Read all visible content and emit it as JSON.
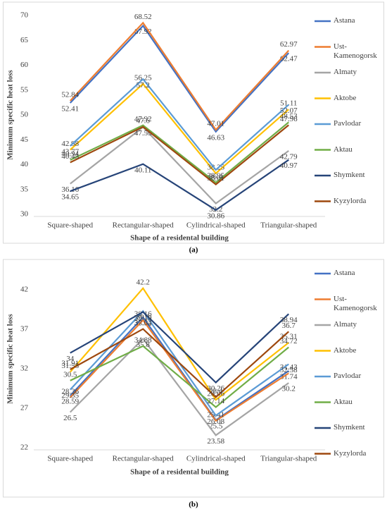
{
  "chart_data": [
    {
      "type": "line",
      "caption": "(a)",
      "y_label": "Minimum specific heat loss",
      "x_label": "Shape of a residental building",
      "categories": [
        "Square-shaped",
        "Rectangular-shaped",
        "Cylindrical-shaped",
        "Triangular-shaped"
      ],
      "ylim": [
        30,
        70
      ],
      "yticks": [
        30,
        35,
        40,
        45,
        50,
        55,
        60,
        65,
        70
      ],
      "grid": false,
      "legend": "right",
      "series": [
        {
          "name": "Astana",
          "color": "#4472c4",
          "values": [
            52.41,
            67.92,
            46.63,
            62.47
          ]
        },
        {
          "name": "Ust-Kamenogorsk",
          "color": "#ed7d31",
          "values": [
            52.84,
            68.52,
            47.01,
            62.97
          ]
        },
        {
          "name": "Almaty",
          "color": "#a5a5a5",
          "values": [
            36.16,
            47.55,
            32.2,
            42.79
          ]
        },
        {
          "name": "Aktobe",
          "color": "#ffc000",
          "values": [
            42.98,
            56.25,
            38.25,
            51.11
          ]
        },
        {
          "name": "Pavlodar",
          "color": "#5b9bd5",
          "values": [
            43.77,
            57.2,
            38.95,
            52.07
          ]
        },
        {
          "name": "Aktau",
          "color": "#70ad47",
          "values": [
            40.94,
            47.92,
            36.4,
            48.53
          ]
        },
        {
          "name": "Shymkent",
          "color": "#264478",
          "values": [
            34.65,
            40.11,
            30.86,
            40.97
          ]
        },
        {
          "name": "Kyzylorda",
          "color": "#9e480e",
          "values": [
            40.45,
            47.6,
            36.01,
            47.96
          ]
        }
      ]
    },
    {
      "type": "line",
      "caption": "(b)",
      "y_label": "Minimum specific heat loss",
      "x_label": "Shape of a residental building",
      "categories": [
        "Square-shaped",
        "Rectangular-shaped",
        "Cylindrical-shaped",
        "Triangular-shaped"
      ],
      "ylim": [
        22,
        44.5
      ],
      "yticks": [
        22,
        27,
        32,
        37,
        42
      ],
      "grid": false,
      "legend": "right",
      "series": [
        {
          "name": "Astana",
          "color": "#4472c4",
          "values": [
            28.59,
            38.52,
            25.5,
            31.74
          ]
        },
        {
          "name": "Ust-Kamenogorsk",
          "color": "#ed7d31",
          "values": [
            28.36,
            38.16,
            25.41,
            31.43
          ]
        },
        {
          "name": "Almaty",
          "color": "#a5a5a5",
          "values": [
            26.5,
            35.8,
            23.58,
            30.2
          ]
        },
        {
          "name": "Aktobe",
          "color": "#ffc000",
          "values": [
            31.58,
            42.2,
            28.06,
            35.31
          ]
        },
        {
          "name": "Pavlodar",
          "color": "#5b9bd5",
          "values": [
            29.35,
            39.3,
            26.08,
            32.58
          ]
        },
        {
          "name": "Aktau",
          "color": "#70ad47",
          "values": [
            30.5,
            34.88,
            27.14,
            34.72
          ]
        },
        {
          "name": "Shymkent",
          "color": "#264478",
          "values": [
            34,
            39.19,
            30.26,
            38.94
          ]
        },
        {
          "name": "Kyzylorda",
          "color": "#9e480e",
          "values": [
            31.91,
            37.04,
            28.4,
            36.7
          ]
        }
      ]
    }
  ]
}
